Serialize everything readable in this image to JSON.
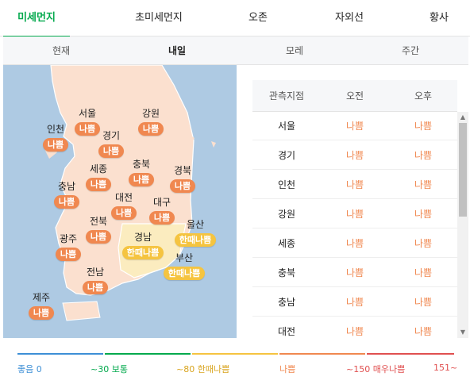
{
  "tabs": [
    "미세먼지",
    "초미세먼지",
    "오존",
    "자외선",
    "황사"
  ],
  "subtabs": [
    "현재",
    "내일",
    "모레",
    "주간"
  ],
  "map": {
    "regions": [
      {
        "name": "서울",
        "status": "나쁨",
        "level": "bad"
      },
      {
        "name": "강원",
        "status": "나쁨",
        "level": "bad"
      },
      {
        "name": "인천",
        "status": "나쁨",
        "level": "bad"
      },
      {
        "name": "경기",
        "status": "나쁨",
        "level": "bad"
      },
      {
        "name": "세종",
        "status": "나쁨",
        "level": "bad"
      },
      {
        "name": "충북",
        "status": "나쁨",
        "level": "bad"
      },
      {
        "name": "경북",
        "status": "나쁨",
        "level": "bad"
      },
      {
        "name": "충남",
        "status": "나쁨",
        "level": "bad"
      },
      {
        "name": "대전",
        "status": "나쁨",
        "level": "bad"
      },
      {
        "name": "대구",
        "status": "나쁨",
        "level": "bad"
      },
      {
        "name": "울산",
        "status": "한때나쁨",
        "level": "mid"
      },
      {
        "name": "전북",
        "status": "나쁨",
        "level": "bad"
      },
      {
        "name": "광주",
        "status": "나쁨",
        "level": "bad"
      },
      {
        "name": "경남",
        "status": "한때나쁨",
        "level": "mid"
      },
      {
        "name": "부산",
        "status": "한때나쁨",
        "level": "mid"
      },
      {
        "name": "전남",
        "status": "나쁨",
        "level": "bad"
      },
      {
        "name": "제주",
        "status": "나쁨",
        "level": "bad"
      }
    ]
  },
  "table": {
    "headers": [
      "관측지점",
      "오전",
      "오후"
    ],
    "rows": [
      {
        "station": "서울",
        "am": "나쁨",
        "pm": "나쁨"
      },
      {
        "station": "경기",
        "am": "나쁨",
        "pm": "나쁨"
      },
      {
        "station": "인천",
        "am": "나쁨",
        "pm": "나쁨"
      },
      {
        "station": "강원",
        "am": "나쁨",
        "pm": "나쁨"
      },
      {
        "station": "세종",
        "am": "나쁨",
        "pm": "나쁨"
      },
      {
        "station": "충북",
        "am": "나쁨",
        "pm": "나쁨"
      },
      {
        "station": "충남",
        "am": "나쁨",
        "pm": "나쁨"
      },
      {
        "station": "대전",
        "am": "나쁨",
        "pm": "나쁨"
      }
    ]
  },
  "legend": {
    "items": [
      {
        "label": "좋음 0",
        "color": "#3d8fd6"
      },
      {
        "label": "~30 보통",
        "color": "#03a94d"
      },
      {
        "label": "~80 한때나쁨",
        "color": "#f5c440"
      },
      {
        "label": "나쁨",
        "color": "#f08850"
      },
      {
        "label": "~150 매우나쁨",
        "color": "#e05050"
      },
      {
        "label": "151~",
        "color": "#e05050"
      }
    ]
  },
  "colors": {
    "accent": "#03a94d",
    "bad": "#f08850",
    "mid": "#f5c440"
  }
}
